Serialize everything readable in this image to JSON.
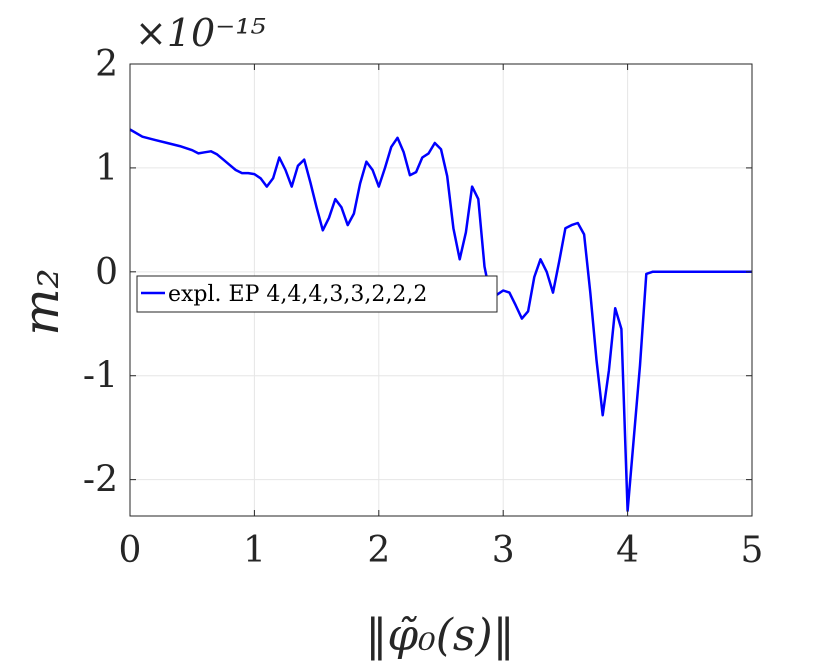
{
  "chart_data": {
    "type": "line",
    "title": "",
    "exponent_label": "×10⁻¹⁵",
    "xlabel": "‖φ̃₀(s)‖",
    "ylabel": "m₂",
    "xlim": [
      0,
      5
    ],
    "ylim": [
      -2.35,
      2
    ],
    "xticks": [
      0,
      1,
      2,
      3,
      4,
      5
    ],
    "xtick_labels": [
      "0",
      "1",
      "2",
      "3",
      "4",
      "5"
    ],
    "yticks": [
      2,
      1,
      0,
      -1,
      -2
    ],
    "ytick_labels": [
      "2",
      "1",
      "0",
      "-1",
      "-2"
    ],
    "grid": true,
    "legend_position": "middle-left",
    "series": [
      {
        "name": "expl. EP 4,4,4,3,3,2,2,2",
        "color": "#0000ff",
        "x": [
          0,
          0.1,
          0.2,
          0.3,
          0.4,
          0.5,
          0.55,
          0.6,
          0.65,
          0.7,
          0.75,
          0.8,
          0.85,
          0.9,
          0.95,
          1.0,
          1.05,
          1.1,
          1.15,
          1.2,
          1.25,
          1.3,
          1.35,
          1.4,
          1.45,
          1.5,
          1.55,
          1.6,
          1.65,
          1.7,
          1.75,
          1.8,
          1.85,
          1.9,
          1.95,
          2.0,
          2.05,
          2.1,
          2.15,
          2.2,
          2.25,
          2.3,
          2.35,
          2.4,
          2.45,
          2.5,
          2.55,
          2.6,
          2.65,
          2.7,
          2.75,
          2.8,
          2.85,
          2.9,
          2.95,
          3.0,
          3.05,
          3.1,
          3.15,
          3.2,
          3.25,
          3.3,
          3.35,
          3.4,
          3.45,
          3.5,
          3.55,
          3.6,
          3.65,
          3.7,
          3.75,
          3.8,
          3.85,
          3.9,
          3.95,
          4.0,
          4.05,
          4.1,
          4.15,
          4.2,
          4.25,
          4.3,
          4.35,
          4.4,
          4.45,
          4.5,
          4.55,
          4.6,
          4.65,
          4.7,
          4.75,
          4.8,
          4.85,
          4.88,
          4.91,
          4.94,
          4.97,
          5.0,
          5.02
        ],
        "y": [
          1.37,
          1.3,
          1.27,
          1.24,
          1.21,
          1.17,
          1.14,
          1.15,
          1.16,
          1.13,
          1.08,
          1.03,
          0.98,
          0.95,
          0.95,
          0.94,
          0.9,
          0.82,
          0.9,
          1.1,
          0.98,
          0.82,
          1.02,
          1.08,
          0.86,
          0.62,
          0.4,
          0.52,
          0.7,
          0.62,
          0.45,
          0.56,
          0.85,
          1.06,
          0.98,
          0.82,
          1.0,
          1.2,
          1.29,
          1.15,
          0.93,
          0.96,
          1.1,
          1.14,
          1.24,
          1.18,
          0.92,
          0.42,
          0.12,
          0.38,
          0.82,
          0.7,
          0.05,
          -0.25,
          -0.22,
          -0.18,
          -0.2,
          -0.32,
          -0.45,
          -0.38,
          -0.05,
          0.12,
          0.0,
          -0.2,
          0.1,
          0.42,
          0.45,
          0.47,
          0.36,
          -0.2,
          -0.85,
          -1.38,
          -0.95,
          -0.35,
          -0.55,
          -2.3,
          -1.6,
          -0.9,
          -0.02,
          0.0,
          0.0,
          0.0,
          0.0,
          0.0,
          0.0,
          0.0,
          0.0,
          0.0,
          0.0,
          0.0,
          0.0,
          0.0,
          0.0,
          0.0,
          0.0,
          0.0,
          0.0,
          0.0,
          0.0
        ]
      }
    ]
  }
}
